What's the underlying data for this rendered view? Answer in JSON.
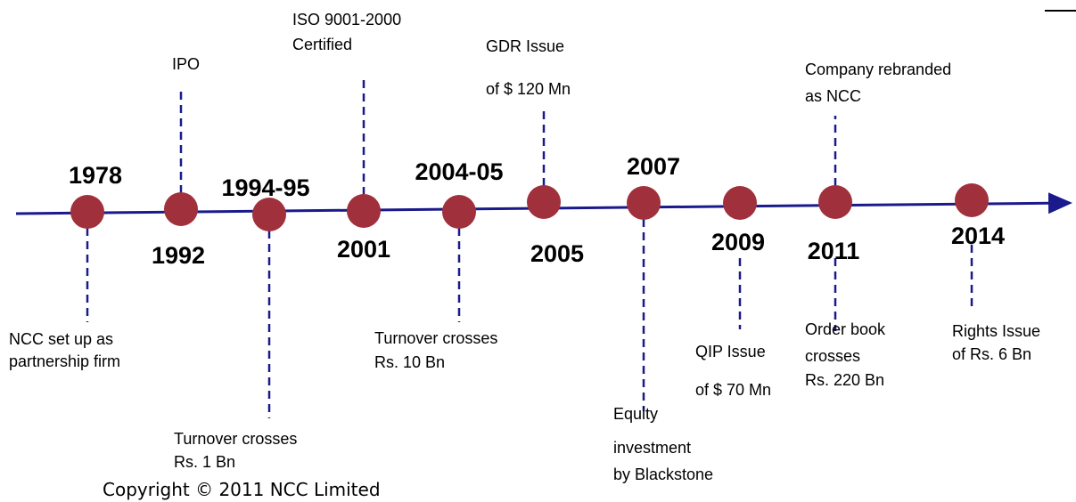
{
  "events": [
    {
      "year": "1978",
      "notes": [
        {
          "lines": [
            "NCC set up as",
            "partnership firm"
          ]
        }
      ]
    },
    {
      "year": "1992",
      "notes": [
        {
          "lines": [
            "IPO"
          ]
        }
      ]
    },
    {
      "year": "1994-95",
      "notes": [
        {
          "lines": [
            "Turnover crosses",
            "Rs. 1 Bn"
          ]
        }
      ]
    },
    {
      "year": "2001",
      "notes": [
        {
          "lines": [
            "ISO 9001-2000",
            "Certified"
          ]
        }
      ]
    },
    {
      "year": "2004-05",
      "notes": [
        {
          "lines": [
            "Turnover crosses",
            "Rs. 10 Bn"
          ]
        }
      ]
    },
    {
      "year": "2005",
      "notes": [
        {
          "lines": [
            "GDR Issue",
            "of $ 120 Mn"
          ]
        }
      ]
    },
    {
      "year": "2007",
      "notes": [
        {
          "lines": [
            "Equity",
            "investment",
            "by Blackstone"
          ]
        }
      ]
    },
    {
      "year": "2009",
      "notes": [
        {
          "lines": [
            "QIP Issue",
            "of $ 70 Mn"
          ]
        }
      ]
    },
    {
      "year": "2011",
      "notes": [
        {
          "lines": [
            "Company rebranded",
            "as NCC"
          ]
        },
        {
          "lines": [
            "Order book",
            "crosses",
            "Rs. 220 Bn"
          ]
        }
      ]
    },
    {
      "year": "2014",
      "notes": [
        {
          "lines": [
            "Rights Issue",
            "of Rs. 6 Bn"
          ]
        }
      ]
    }
  ],
  "footer": "Copyright © 2011 NCC Limited"
}
